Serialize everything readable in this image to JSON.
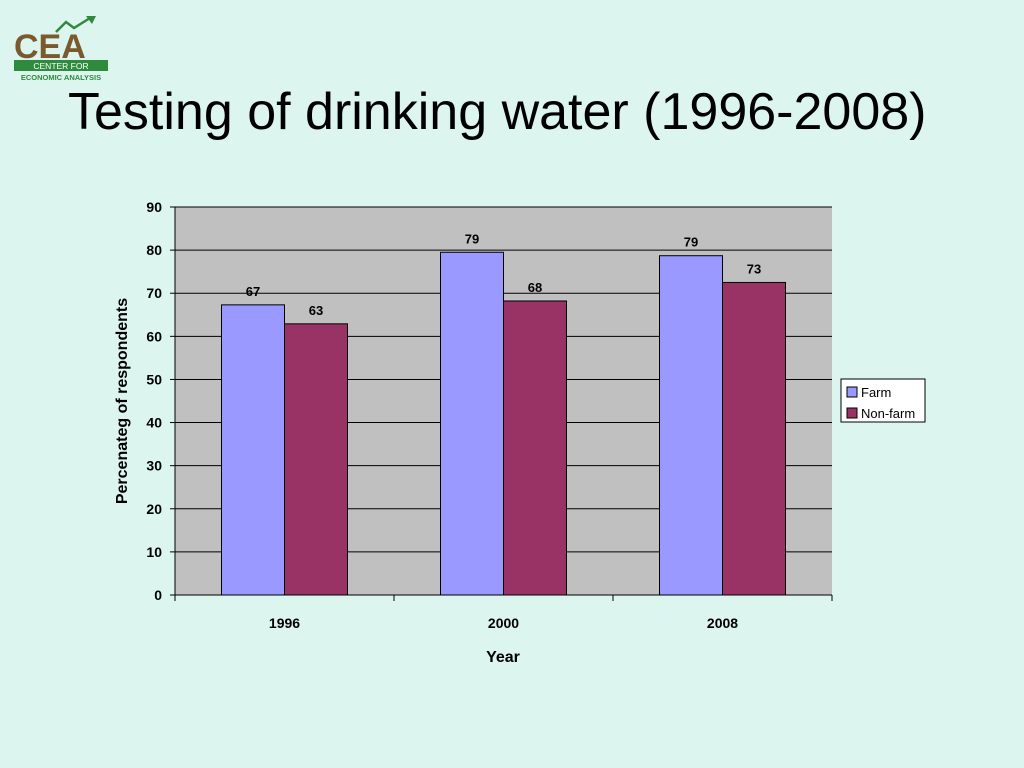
{
  "logo": {
    "letters": "CEA",
    "line1": "CENTER FOR",
    "line2": "ECONOMIC ANALYSIS",
    "color": "#7a5a2c",
    "accent": "#2e8b3e"
  },
  "title": "Testing of drinking water (1996-2008)",
  "chart_data": {
    "type": "bar",
    "categories": [
      "1996",
      "2000",
      "2008"
    ],
    "series": [
      {
        "name": "Farm",
        "values": [
          67,
          79,
          79
        ],
        "color": "#9999ff"
      },
      {
        "name": "Non-farm",
        "values": [
          63,
          68,
          73
        ],
        "color": "#993366"
      }
    ],
    "bar_heights": [
      [
        67.3,
        79.5,
        78.7
      ],
      [
        62.9,
        68.2,
        72.5
      ]
    ],
    "xlabel": "Year",
    "ylabel": "Percenateg of respondents",
    "ylim": [
      0,
      90
    ],
    "yticks": [
      0,
      10,
      20,
      30,
      40,
      50,
      60,
      70,
      80,
      90
    ],
    "grid": true,
    "legend": "right",
    "plot_background": "#c0c0c0"
  }
}
